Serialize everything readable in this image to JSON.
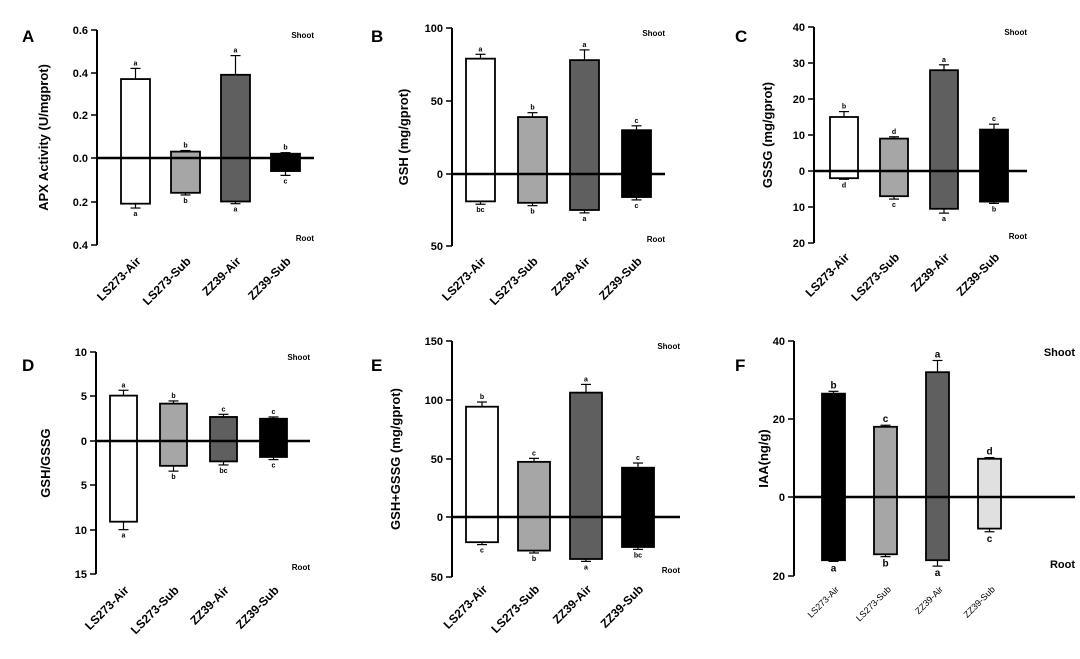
{
  "categories": [
    "LS273-Air",
    "LS273-Sub",
    "ZZ39-Air",
    "ZZ39-Sub"
  ],
  "categories_F": [
    "LS273-Air",
    "LS273-Sub",
    "ZZ39-Air",
    "ZZ39-Sub"
  ],
  "corner_top": "Shoot",
  "corner_bottom": "Root",
  "chart_data": [
    {
      "type": "bar",
      "panel": "A",
      "ylabel": "APX Activity (U/mgprot)",
      "ylim_top": [
        0,
        0.6
      ],
      "ylim_bottom": [
        0,
        0.4
      ],
      "ticks_top": [
        "0.6",
        "0.4",
        "0.2",
        "0.0"
      ],
      "ticks_bottom": [
        "0.2",
        "0.4"
      ],
      "shoot": [
        0.37,
        0.03,
        0.39,
        0.02
      ],
      "shoot_err": [
        0.05,
        0.005,
        0.09,
        0.005
      ],
      "root": [
        0.21,
        0.16,
        0.2,
        0.06
      ],
      "root_err": [
        0.02,
        0.01,
        0.01,
        0.02
      ],
      "shoot_letters": [
        "a",
        "b",
        "a",
        "b"
      ],
      "root_letters": [
        "a",
        "b",
        "a",
        "c"
      ],
      "colors": [
        "#ffffff",
        "#a6a6a6",
        "#5f5f5f",
        "#000000"
      ]
    },
    {
      "type": "bar",
      "panel": "B",
      "ylabel": "GSH (mg/gprot)",
      "ylim_top": [
        0,
        100
      ],
      "ylim_bottom": [
        0,
        50
      ],
      "ticks_top": [
        "100",
        "50",
        "0"
      ],
      "ticks_bottom": [
        "50"
      ],
      "shoot": [
        79,
        39,
        78,
        30
      ],
      "shoot_err": [
        3,
        3,
        7,
        3
      ],
      "root": [
        19,
        20,
        25,
        16
      ],
      "root_err": [
        2,
        2,
        2,
        2
      ],
      "shoot_letters": [
        "a",
        "b",
        "a",
        "c"
      ],
      "root_letters": [
        "bc",
        "b",
        "a",
        "c"
      ],
      "colors": [
        "#ffffff",
        "#a6a6a6",
        "#5f5f5f",
        "#000000"
      ]
    },
    {
      "type": "bar",
      "panel": "C",
      "ylabel": "GSSG (mg/gprot)",
      "ylim_top": [
        0,
        40
      ],
      "ylim_bottom": [
        0,
        20
      ],
      "ticks_top": [
        "40",
        "30",
        "20",
        "10",
        "0"
      ],
      "ticks_bottom": [
        "10",
        "20"
      ],
      "shoot": [
        15,
        9,
        28,
        11.5
      ],
      "shoot_err": [
        1.5,
        0.5,
        1.5,
        1.5
      ],
      "root": [
        2,
        7,
        10.5,
        8.5
      ],
      "root_err": [
        0.3,
        0.8,
        1.2,
        0.5
      ],
      "shoot_letters": [
        "b",
        "d",
        "a",
        "c"
      ],
      "root_letters": [
        "d",
        "c",
        "a",
        "b"
      ],
      "colors": [
        "#ffffff",
        "#a6a6a6",
        "#5f5f5f",
        "#000000"
      ]
    },
    {
      "type": "bar",
      "panel": "D",
      "ylabel": "GSH/GSSG",
      "ylim_top": [
        0,
        10
      ],
      "ylim_bottom": [
        0,
        15
      ],
      "ticks_top": [
        "10",
        "5",
        "0"
      ],
      "ticks_bottom": [
        "5",
        "10",
        "15"
      ],
      "shoot": [
        5.1,
        4.2,
        2.7,
        2.5
      ],
      "shoot_err": [
        0.6,
        0.3,
        0.3,
        0.2
      ],
      "root": [
        9.1,
        2.8,
        2.3,
        1.8
      ],
      "root_err": [
        0.9,
        0.6,
        0.4,
        0.3
      ],
      "shoot_letters": [
        "a",
        "b",
        "c",
        "c"
      ],
      "root_letters": [
        "a",
        "b",
        "bc",
        "c"
      ],
      "colors": [
        "#ffffff",
        "#a6a6a6",
        "#5f5f5f",
        "#000000"
      ]
    },
    {
      "type": "bar",
      "panel": "E",
      "ylabel": "GSH+GSSG (mg/gprot)",
      "ylim_top": [
        0,
        150
      ],
      "ylim_bottom": [
        0,
        50
      ],
      "ticks_top": [
        "150",
        "100",
        "50",
        "0"
      ],
      "ticks_bottom": [
        "50"
      ],
      "shoot": [
        94,
        47,
        106,
        42
      ],
      "shoot_err": [
        4,
        3,
        7,
        4
      ],
      "root": [
        21,
        28,
        35,
        25
      ],
      "root_err": [
        2,
        2,
        2,
        2
      ],
      "shoot_letters": [
        "b",
        "c",
        "a",
        "c"
      ],
      "root_letters": [
        "c",
        "b",
        "a",
        "bc"
      ],
      "colors": [
        "#ffffff",
        "#a6a6a6",
        "#5f5f5f",
        "#000000"
      ]
    },
    {
      "type": "bar",
      "panel": "F",
      "ylabel": "IAA(ng/g)",
      "ylim_top": [
        0,
        40
      ],
      "ylim_bottom": [
        0,
        20
      ],
      "ticks_top": [
        "40",
        "20",
        "0"
      ],
      "ticks_bottom": [
        "20"
      ],
      "shoot": [
        26.5,
        18,
        32,
        9.8
      ],
      "shoot_err": [
        0.6,
        0.4,
        3,
        0.3
      ],
      "root": [
        16,
        14.5,
        16,
        8
      ],
      "root_err": [
        0.3,
        0.6,
        1.5,
        0.8
      ],
      "shoot_letters": [
        "b",
        "c",
        "a",
        "d"
      ],
      "root_letters": [
        "a",
        "b",
        "a",
        "c"
      ],
      "colors": [
        "#000000",
        "#a6a6a6",
        "#5f5f5f",
        "#e0e0e0"
      ]
    }
  ]
}
